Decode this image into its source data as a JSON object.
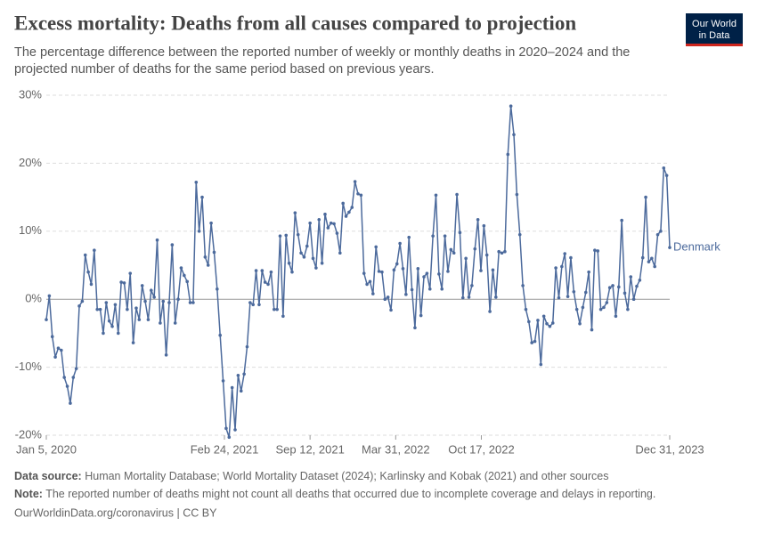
{
  "chart_data": {
    "type": "line",
    "title": "Excess mortality: Deaths from all causes compared to projection",
    "subtitle": [
      "The percentage difference between the reported number of weekly or monthly deaths in 2020–2024 and the",
      "projected number of deaths for the same period based on previous years."
    ],
    "x": [
      "2020-01-05",
      "2020-01-12",
      "2020-01-19",
      "2020-01-26",
      "2020-02-02",
      "2020-02-09",
      "2020-02-16",
      "2020-02-23",
      "2020-03-01",
      "2020-03-08",
      "2020-03-15",
      "2020-03-22",
      "2020-03-29",
      "2020-04-05",
      "2020-04-12",
      "2020-04-19",
      "2020-04-26",
      "2020-05-03",
      "2020-05-10",
      "2020-05-17",
      "2020-05-24",
      "2020-05-31",
      "2020-06-07",
      "2020-06-14",
      "2020-06-21",
      "2020-06-28",
      "2020-07-05",
      "2020-07-12",
      "2020-07-19",
      "2020-07-26",
      "2020-08-02",
      "2020-08-09",
      "2020-08-16",
      "2020-08-23",
      "2020-08-30",
      "2020-09-06",
      "2020-09-13",
      "2020-09-20",
      "2020-09-27",
      "2020-10-04",
      "2020-10-11",
      "2020-10-18",
      "2020-10-25",
      "2020-11-01",
      "2020-11-08",
      "2020-11-15",
      "2020-11-22",
      "2020-11-29",
      "2020-12-06",
      "2020-12-13",
      "2020-12-20",
      "2020-12-27",
      "2021-01-03",
      "2021-01-10",
      "2021-01-17",
      "2021-01-24",
      "2021-01-31",
      "2021-02-07",
      "2021-02-14",
      "2021-02-21",
      "2021-02-28",
      "2021-03-07",
      "2021-03-14",
      "2021-03-21",
      "2021-03-28",
      "2021-04-04",
      "2021-04-11",
      "2021-04-18",
      "2021-04-25",
      "2021-05-02",
      "2021-05-09",
      "2021-05-16",
      "2021-05-23",
      "2021-05-30",
      "2021-06-06",
      "2021-06-13",
      "2021-06-20",
      "2021-06-27",
      "2021-07-04",
      "2021-07-11",
      "2021-07-18",
      "2021-07-25",
      "2021-08-01",
      "2021-08-08",
      "2021-08-15",
      "2021-08-22",
      "2021-08-29",
      "2021-09-05",
      "2021-09-12",
      "2021-09-19",
      "2021-09-26",
      "2021-10-03",
      "2021-10-10",
      "2021-10-17",
      "2021-10-24",
      "2021-10-31",
      "2021-11-07",
      "2021-11-14",
      "2021-11-21",
      "2021-11-28",
      "2021-12-05",
      "2021-12-12",
      "2021-12-19",
      "2021-12-26",
      "2022-01-02",
      "2022-01-09",
      "2022-01-16",
      "2022-01-23",
      "2022-01-30",
      "2022-02-06",
      "2022-02-13",
      "2022-02-20",
      "2022-02-27",
      "2022-03-06",
      "2022-03-13",
      "2022-03-20",
      "2022-03-27",
      "2022-04-03",
      "2022-04-10",
      "2022-04-17",
      "2022-04-24",
      "2022-05-01",
      "2022-05-08",
      "2022-05-15",
      "2022-05-22",
      "2022-05-29",
      "2022-06-05",
      "2022-06-12",
      "2022-06-19",
      "2022-06-26",
      "2022-07-03",
      "2022-07-10",
      "2022-07-17",
      "2022-07-24",
      "2022-07-31",
      "2022-08-07",
      "2022-08-14",
      "2022-08-21",
      "2022-08-28",
      "2022-09-04",
      "2022-09-11",
      "2022-09-18",
      "2022-09-25",
      "2022-10-02",
      "2022-10-09",
      "2022-10-16",
      "2022-10-23",
      "2022-10-30",
      "2022-11-06",
      "2022-11-13",
      "2022-11-20",
      "2022-11-27",
      "2022-12-04",
      "2022-12-11",
      "2022-12-18",
      "2022-12-25",
      "2023-01-01",
      "2023-01-08",
      "2023-01-15",
      "2023-01-22",
      "2023-01-29",
      "2023-02-05",
      "2023-02-12",
      "2023-02-19",
      "2023-02-26",
      "2023-03-05",
      "2023-03-12",
      "2023-03-19",
      "2023-03-26",
      "2023-04-02",
      "2023-04-09",
      "2023-04-16",
      "2023-04-23",
      "2023-04-30",
      "2023-05-07",
      "2023-05-14",
      "2023-05-21",
      "2023-05-28",
      "2023-06-04",
      "2023-06-11",
      "2023-06-18",
      "2023-06-25",
      "2023-07-02",
      "2023-07-09",
      "2023-07-16",
      "2023-07-23",
      "2023-07-30",
      "2023-08-06",
      "2023-08-13",
      "2023-08-20",
      "2023-08-27",
      "2023-09-03",
      "2023-09-10",
      "2023-09-17",
      "2023-09-24",
      "2023-10-01",
      "2023-10-08",
      "2023-10-15",
      "2023-10-22",
      "2023-10-29",
      "2023-11-05",
      "2023-11-12",
      "2023-11-19",
      "2023-11-26",
      "2023-12-03",
      "2023-12-10",
      "2023-12-17",
      "2023-12-24",
      "2023-12-31"
    ],
    "series": [
      {
        "name": "Denmark",
        "color": "#4c6a9c",
        "values": [
          -3,
          0.5,
          -5.5,
          -8.5,
          -7.2,
          -7.5,
          -11.5,
          -12.8,
          -15.3,
          -11.5,
          -10.2,
          -1,
          -0.3,
          6.5,
          4,
          2.2,
          7.2,
          -1.5,
          -1.5,
          -5,
          -0.5,
          -3.2,
          -4,
          -0.8,
          -5,
          2.5,
          2.4,
          -1.5,
          3.8,
          -6.4,
          -1.3,
          -3,
          2,
          -0.3,
          -3,
          1.3,
          0.3,
          8.7,
          -3.5,
          -0.3,
          -8.2,
          -0.5,
          8,
          -3.5,
          0,
          4.6,
          3.5,
          2.6,
          -0.5,
          -0.5,
          17.2,
          10,
          15,
          6.2,
          5,
          11.2,
          6.9,
          1.5,
          -5.3,
          -12,
          -19,
          -20.3,
          -13,
          -19.2,
          -11.2,
          -13.5,
          -11,
          -7,
          -0.5,
          -0.8,
          4.2,
          -0.8,
          4.2,
          2.5,
          2.2,
          4,
          -1.5,
          -1.5,
          9.3,
          -2.5,
          9.4,
          5.3,
          4,
          12.7,
          9.5,
          6.8,
          6.2,
          7.8,
          11.2,
          6,
          4.6,
          11.7,
          5.3,
          12.5,
          10.5,
          11.2,
          11.1,
          9.7,
          6.8,
          14.1,
          12.2,
          12.8,
          13.5,
          17.3,
          15.5,
          15.3,
          3.8,
          2.2,
          2.6,
          0.8,
          7.7,
          4.1,
          4,
          0,
          0.3,
          -1.6,
          4.3,
          5.2,
          8.2,
          4.5,
          0.7,
          9.1,
          1.4,
          -4.2,
          4.5,
          -2.4,
          3.3,
          3.8,
          1.5,
          9.3,
          15.3,
          3.7,
          1.5,
          9.3,
          4.1,
          7.3,
          6.8,
          15.4,
          9.8,
          0.2,
          6,
          0.3,
          2,
          7.4,
          11.7,
          4.2,
          10.8,
          6.5,
          -1.8,
          4.3,
          0.3,
          7,
          6.8,
          7,
          21.3,
          28.4,
          24.2,
          15.4,
          9.5,
          2,
          -1.5,
          -3.3,
          -6.4,
          -6.2,
          -3.1,
          -9.6,
          -2.5,
          -3.6,
          -4,
          -3.5,
          4.6,
          0.2,
          4.8,
          6.7,
          0.4,
          6.1,
          1.1,
          -1.5,
          -3.6,
          -1.2,
          1,
          4,
          -4.5,
          7.2,
          7.1,
          -1.5,
          -1.2,
          -0.5,
          1.7,
          2,
          -2.5,
          1.8,
          11.6,
          0.9,
          -1.5,
          3.3,
          0,
          1.9,
          2.8,
          6.1,
          15,
          5.5,
          6,
          4.8,
          9.5,
          10,
          19.3,
          18.2,
          7.6
        ]
      }
    ],
    "xlim": [
      "2020-01-05",
      "2023-12-31"
    ],
    "xticks": [
      {
        "value": "2020-01-05",
        "label": "Jan 5, 2020"
      },
      {
        "value": "2021-02-24",
        "label": "Feb 24, 2021"
      },
      {
        "value": "2021-09-12",
        "label": "Sep 12, 2021"
      },
      {
        "value": "2022-03-31",
        "label": "Mar 31, 2022"
      },
      {
        "value": "2022-10-17",
        "label": "Oct 17, 2022"
      },
      {
        "value": "2023-12-31",
        "label": "Dec 31, 2023"
      }
    ],
    "ylim": [
      -20,
      30
    ],
    "yticks": [
      {
        "value": -20,
        "label": "-20%"
      },
      {
        "value": -10,
        "label": "-10%"
      },
      {
        "value": 0,
        "label": "0%"
      },
      {
        "value": 10,
        "label": "10%"
      },
      {
        "value": 20,
        "label": "20%"
      },
      {
        "value": 30,
        "label": "30%"
      }
    ],
    "grid": true
  },
  "logo": {
    "lines": [
      "Our World",
      "in Data"
    ]
  },
  "footer": {
    "source_label": "Data source:",
    "source": "Human Mortality Database; World Mortality Dataset (2024); Karlinsky and Kobak (2021) and other sources",
    "note_label": "Note:",
    "note": "The reported number of deaths might not count all deaths that occurred due to incomplete coverage and delays in reporting.",
    "link": "OurWorldinData.org/coronavirus | CC BY"
  }
}
